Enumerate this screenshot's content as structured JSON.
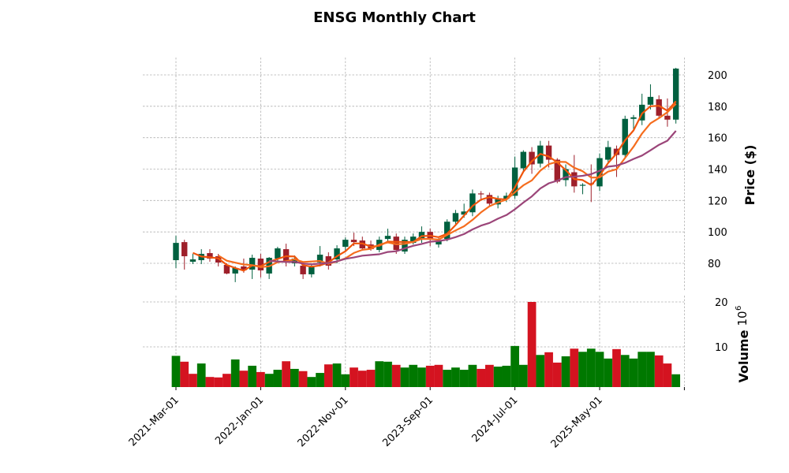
{
  "chart_data": {
    "type": "candlestick",
    "title": "ENSG Monthly Chart",
    "ylabel": "Price ($)",
    "volume_label": "Volume",
    "volume_multiplier_label": "10",
    "volume_multiplier_exp": "6",
    "ylim": [
      61.5,
      211
    ],
    "volume_ylim": [
      1,
      21.3
    ],
    "grid": true,
    "price_ticks": [
      80,
      100,
      120,
      140,
      160,
      180,
      200
    ],
    "volume_ticks": [
      10,
      20
    ],
    "x_ticks": [
      {
        "index": 0,
        "label": "2021-Mar-01"
      },
      {
        "index": 10,
        "label": "2022-Jan-01"
      },
      {
        "index": 20,
        "label": "2022-Nov-01"
      },
      {
        "index": 30,
        "label": "2023-Sep-01"
      },
      {
        "index": 40,
        "label": "2024-Jul-01"
      },
      {
        "index": 50,
        "label": "2025-May-01"
      },
      {
        "index": 60,
        "label": ""
      }
    ],
    "moving_averages": [
      {
        "window": 3,
        "color": "#f0550c"
      },
      {
        "window": 6,
        "color": "#f56d1e"
      },
      {
        "window": 12,
        "color": "#9b4579"
      }
    ],
    "colors": {
      "up": "#00603f",
      "down": "#9e1f2a",
      "vol_up": "#007800",
      "vol_down": "#d41320"
    },
    "candles": {
      "open": [
        82,
        93.5,
        81,
        82,
        86.5,
        84.5,
        79,
        73.5,
        78,
        76,
        83,
        73.5,
        83,
        89,
        80,
        78.5,
        73,
        80.5,
        84.5,
        82.5,
        90.5,
        95,
        94.5,
        92,
        88.5,
        95.5,
        97,
        87.5,
        93,
        95.5,
        100,
        92,
        95.5,
        106.5,
        111,
        112.5,
        124.5,
        123.5,
        117.5,
        121,
        123,
        140.5,
        151,
        143.5,
        155,
        146,
        133,
        138,
        129.5,
        131,
        129,
        146,
        153,
        149,
        172,
        171,
        181,
        184.5,
        174,
        171.5
      ],
      "high": [
        97.5,
        95,
        86,
        89,
        89,
        86,
        80,
        78,
        83,
        85.5,
        86,
        84,
        90.5,
        92.5,
        85,
        80.5,
        79,
        91,
        87,
        91.5,
        96.5,
        99.5,
        97,
        94.5,
        97,
        102,
        99,
        97,
        99,
        103.5,
        102,
        96,
        108,
        114,
        118,
        127,
        126,
        125,
        123,
        125,
        148,
        152,
        154,
        158,
        158,
        147,
        143,
        149,
        131,
        143,
        150,
        158,
        155,
        174,
        174.5,
        188,
        194,
        187,
        185,
        204.5
      ],
      "low": [
        77,
        76,
        79.5,
        79.5,
        81,
        78,
        73,
        68,
        74,
        70,
        71,
        70,
        81,
        78,
        78,
        70,
        71,
        78,
        76,
        80,
        88,
        91,
        88,
        88,
        87,
        93,
        86,
        86,
        92,
        93,
        91,
        90,
        94,
        104,
        109,
        110,
        121,
        116,
        115,
        119,
        121,
        138,
        137,
        141,
        141,
        131,
        129,
        125,
        124,
        119,
        126,
        144,
        135,
        147,
        165,
        168,
        178,
        172,
        167,
        169
      ],
      "close": [
        93,
        84.5,
        82.5,
        86,
        83,
        80.5,
        73.5,
        77,
        75.5,
        83.5,
        75.5,
        83.5,
        89.5,
        80.5,
        83,
        73,
        77.5,
        85.5,
        78.5,
        89.5,
        95,
        93.5,
        89.5,
        89,
        95,
        97.5,
        88.5,
        95,
        97,
        100,
        95.5,
        94.5,
        106.5,
        112,
        113,
        124.5,
        124,
        118,
        121,
        123,
        141,
        151,
        143,
        155,
        146,
        132,
        140,
        129,
        130,
        130.5,
        147,
        154,
        149,
        172,
        173,
        181,
        186,
        174,
        171.5,
        204
      ]
    },
    "volume": [
      8.0,
      6.7,
      4.0,
      6.3,
      3.3,
      3.2,
      4.0,
      7.2,
      4.7,
      5.8,
      4.4,
      4.0,
      4.9,
      6.8,
      5.1,
      4.6,
      3.3,
      4.2,
      6.1,
      6.3,
      3.9,
      5.4,
      4.7,
      4.9,
      6.8,
      6.7,
      6.0,
      5.4,
      6.0,
      5.4,
      5.8,
      6.0,
      4.9,
      5.4,
      4.9,
      6.0,
      5.1,
      6.0,
      5.6,
      5.8,
      10.2,
      6.0,
      20.0,
      8.2,
      8.8,
      6.5,
      7.9,
      9.6,
      8.9,
      9.6,
      8.9,
      7.4,
      9.5,
      8.2,
      7.4,
      8.9,
      8.9,
      8.1,
      6.3,
      3.9
    ]
  }
}
